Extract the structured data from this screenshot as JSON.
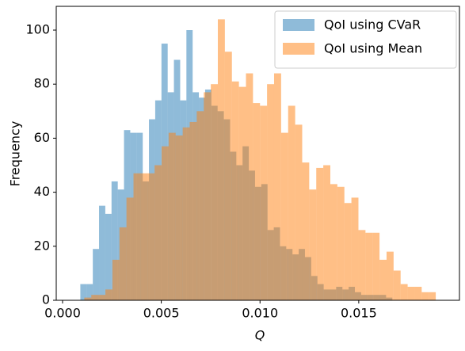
{
  "chart_data": {
    "type": "histogram",
    "xlabel": "Q",
    "ylabel": "Frequency",
    "xlim": [
      -0.00032,
      0.0201
    ],
    "ylim": [
      0,
      108.8
    ],
    "xticks": [
      {
        "value": 0,
        "label": "0.000"
      },
      {
        "value": 0.005,
        "label": "0.005"
      },
      {
        "value": 0.01,
        "label": "0.010"
      },
      {
        "value": 0.015,
        "label": "0.015"
      }
    ],
    "yticks": [
      0,
      20,
      40,
      60,
      80,
      100
    ],
    "legend": "upper right",
    "alpha": 0.5,
    "series": [
      {
        "name": "QoI using CVaR",
        "color": "#1f77b4",
        "bins": [
          0.0009,
          0.001216,
          0.001532,
          0.001848,
          0.002164,
          0.00248,
          0.002796,
          0.003112,
          0.003428,
          0.003744,
          0.00406,
          0.004376,
          0.004692,
          0.005008,
          0.005324,
          0.00564,
          0.005956,
          0.006272,
          0.006588,
          0.006904,
          0.00722,
          0.007536,
          0.007852,
          0.008168,
          0.008484,
          0.0088,
          0.009116,
          0.009432,
          0.009748,
          0.010064,
          0.01038,
          0.010696,
          0.011012,
          0.011328,
          0.011644,
          0.01196,
          0.012276,
          0.012592,
          0.012908,
          0.013224,
          0.01354,
          0.013856,
          0.014172,
          0.014488,
          0.014804,
          0.01512,
          0.015436,
          0.015752,
          0.016068,
          0.016384,
          0.0167
        ],
        "values": [
          6,
          6,
          19,
          35,
          32,
          44,
          41,
          63,
          62,
          62,
          44,
          67,
          74,
          95,
          77,
          89,
          74,
          100,
          77,
          75,
          78,
          72,
          70,
          67,
          55,
          50,
          57,
          48,
          42,
          43,
          26,
          27,
          20,
          19,
          17,
          19,
          16,
          9,
          6,
          4,
          4,
          5,
          4,
          5,
          3,
          2,
          2,
          2,
          2,
          1
        ]
      },
      {
        "name": "QoI using Mean",
        "color": "#ff7f0e",
        "bins": [
          0.0011,
          0.001456,
          0.001812,
          0.002168,
          0.002524,
          0.00288,
          0.003236,
          0.003592,
          0.003948,
          0.004304,
          0.00466,
          0.005016,
          0.005372,
          0.005728,
          0.006084,
          0.00644,
          0.006796,
          0.007152,
          0.007508,
          0.007864,
          0.00822,
          0.008576,
          0.008932,
          0.009288,
          0.009644,
          0.01,
          0.010356,
          0.010712,
          0.011068,
          0.011424,
          0.01178,
          0.012136,
          0.012492,
          0.012848,
          0.013204,
          0.01356,
          0.013916,
          0.014272,
          0.014628,
          0.014984,
          0.01534,
          0.015696,
          0.016052,
          0.016408,
          0.016764,
          0.01712,
          0.017476,
          0.017832,
          0.018188,
          0.018544,
          0.0189
        ],
        "values": [
          1,
          2,
          2,
          4,
          15,
          27,
          38,
          47,
          47,
          47,
          50,
          57,
          62,
          61,
          64,
          66,
          70,
          77,
          80,
          104,
          92,
          81,
          79,
          84,
          73,
          72,
          80,
          84,
          62,
          72,
          65,
          51,
          41,
          49,
          50,
          43,
          42,
          36,
          38,
          26,
          25,
          25,
          15,
          18,
          11,
          6,
          5,
          5,
          3,
          3
        ]
      }
    ]
  }
}
